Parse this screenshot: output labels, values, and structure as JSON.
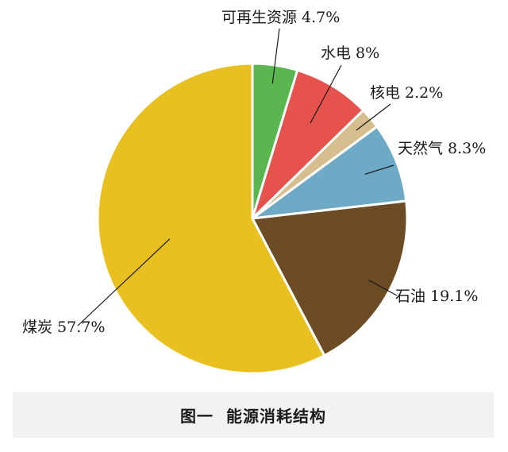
{
  "chart_data": {
    "type": "pie",
    "title": "图一  能源消耗结构",
    "slices": [
      {
        "name": "可再生资源",
        "value": 4.7,
        "label": "可再生资源 4.7%",
        "color": "#5ab74f"
      },
      {
        "name": "水电",
        "value": 8,
        "label": "水电 8%",
        "color": "#e5534c"
      },
      {
        "name": "核电",
        "value": 2.2,
        "label": "核电 2.2%",
        "color": "#d6be8f"
      },
      {
        "name": "天然气",
        "value": 8.3,
        "label": "天然气 8.3%",
        "color": "#6ea9c6"
      },
      {
        "name": "石油",
        "value": 19.1,
        "label": "石油 19.1%",
        "color": "#6b4c24"
      },
      {
        "name": "煤炭",
        "value": 57.7,
        "label": "煤炭 57.7%",
        "color": "#e8c020"
      }
    ]
  }
}
